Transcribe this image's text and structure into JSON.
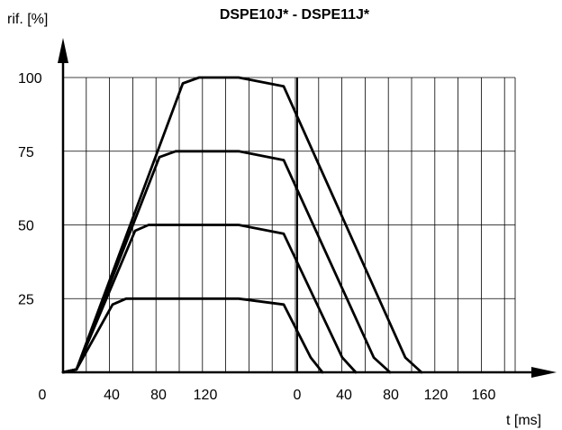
{
  "chart_data": {
    "type": "line",
    "title": "DSPE10J* - DSPE11J*",
    "ylabel": "rif. [%]",
    "xlabel": "t [ms]",
    "ylim": [
      0,
      100
    ],
    "y_ticks": [
      "25",
      "50",
      "75",
      "100"
    ],
    "x_ticks_left": [
      "0",
      "40",
      "80",
      "120"
    ],
    "x_ticks_right": [
      "0",
      "40",
      "80",
      "120",
      "160"
    ],
    "grid": true,
    "series": [
      {
        "x": [
          0,
          15,
          55,
          70,
          195,
          245,
          275,
          288
        ],
        "y": [
          0,
          1,
          23,
          25,
          25,
          23,
          5,
          0
        ]
      },
      {
        "x": [
          0,
          15,
          80,
          95,
          195,
          245,
          310,
          325
        ],
        "y": [
          0,
          1,
          48,
          50,
          50,
          47,
          5,
          0
        ]
      },
      {
        "x": [
          0,
          15,
          107,
          125,
          195,
          245,
          345,
          363
        ],
        "y": [
          0,
          1,
          73,
          75,
          75,
          72,
          5,
          0
        ]
      },
      {
        "x": [
          0,
          15,
          133,
          151,
          195,
          245,
          380,
          398
        ],
        "y": [
          0,
          1,
          98,
          100,
          100,
          97,
          5,
          0
        ]
      }
    ]
  }
}
